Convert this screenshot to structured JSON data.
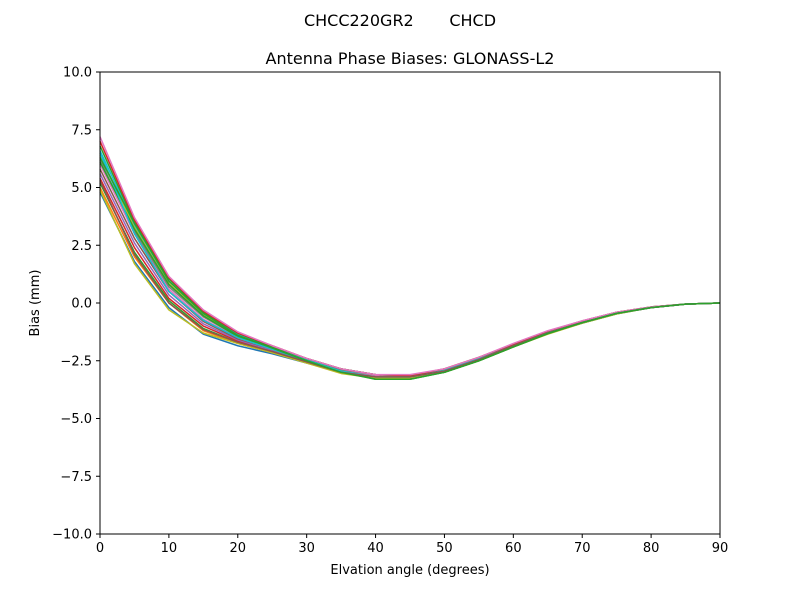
{
  "chart_data": {
    "type": "line",
    "suptitle": "CHCC220GR2       CHCD",
    "title": "Antenna Phase Biases: GLONASS-L2",
    "xlabel": "Elvation angle (degrees)",
    "ylabel": "Bias (mm)",
    "xlim": [
      0,
      90
    ],
    "ylim": [
      -10,
      10
    ],
    "xticks": [
      0,
      10,
      20,
      30,
      40,
      50,
      60,
      70,
      80,
      90
    ],
    "xtick_labels": [
      "0",
      "10",
      "20",
      "30",
      "40",
      "50",
      "60",
      "70",
      "80",
      "90"
    ],
    "yticks": [
      10,
      7.5,
      5,
      2.5,
      0,
      -2.5,
      -5,
      -7.5,
      -10
    ],
    "ytick_labels": [
      "10.0",
      "7.5",
      "5.0",
      "2.5",
      "0.0",
      "−2.5",
      "−5.0",
      "−7.5",
      "−10.0"
    ],
    "grid": false,
    "legend": "none",
    "x": [
      0,
      5,
      10,
      15,
      20,
      25,
      30,
      35,
      40,
      45,
      50,
      55,
      60,
      65,
      70,
      75,
      80,
      85,
      90
    ],
    "series": [
      {
        "color": "#1f77b4",
        "values": [
          4.8,
          1.8,
          -0.2,
          -1.35,
          -1.85,
          -2.2,
          -2.6,
          -3.0,
          -3.2,
          -3.2,
          -2.95,
          -2.45,
          -1.85,
          -1.3,
          -0.85,
          -0.45,
          -0.2,
          -0.05,
          0.0
        ]
      },
      {
        "color": "#ff7f0e",
        "values": [
          5.0,
          2.0,
          0.0,
          -1.2,
          -1.75,
          -2.15,
          -2.55,
          -3.0,
          -3.2,
          -3.2,
          -2.95,
          -2.45,
          -1.85,
          -1.3,
          -0.85,
          -0.45,
          -0.2,
          -0.05,
          0.0
        ]
      },
      {
        "color": "#2ca02c",
        "values": [
          5.2,
          2.2,
          0.1,
          -1.1,
          -1.7,
          -2.1,
          -2.55,
          -2.95,
          -3.2,
          -3.25,
          -3.0,
          -2.5,
          -1.9,
          -1.33,
          -0.87,
          -0.47,
          -0.2,
          -0.05,
          0.0
        ]
      },
      {
        "color": "#d62728",
        "values": [
          5.4,
          2.4,
          0.2,
          -1.0,
          -1.65,
          -2.1,
          -2.55,
          -2.95,
          -3.2,
          -3.2,
          -2.95,
          -2.45,
          -1.85,
          -1.3,
          -0.85,
          -0.45,
          -0.2,
          -0.05,
          0.0
        ]
      },
      {
        "color": "#9467bd",
        "values": [
          5.6,
          2.6,
          0.35,
          -0.9,
          -1.6,
          -2.05,
          -2.5,
          -2.95,
          -3.15,
          -3.2,
          -2.95,
          -2.45,
          -1.85,
          -1.3,
          -0.85,
          -0.45,
          -0.2,
          -0.05,
          0.0
        ]
      },
      {
        "color": "#8c564b",
        "values": [
          5.8,
          2.8,
          0.5,
          -0.8,
          -1.55,
          -2.0,
          -2.5,
          -2.9,
          -3.15,
          -3.2,
          -2.9,
          -2.45,
          -1.85,
          -1.3,
          -0.85,
          -0.45,
          -0.2,
          -0.05,
          0.0
        ]
      },
      {
        "color": "#e377c2",
        "values": [
          6.0,
          3.0,
          0.6,
          -0.7,
          -1.5,
          -2.0,
          -2.5,
          -2.9,
          -3.15,
          -3.2,
          -2.9,
          -2.4,
          -1.8,
          -1.27,
          -0.82,
          -0.45,
          -0.2,
          -0.05,
          0.0
        ]
      },
      {
        "color": "#7f7f7f",
        "values": [
          6.2,
          3.1,
          0.7,
          -0.6,
          -1.45,
          -1.95,
          -2.45,
          -2.9,
          -3.1,
          -3.15,
          -2.9,
          -2.4,
          -1.8,
          -1.27,
          -0.82,
          -0.43,
          -0.18,
          -0.05,
          0.0
        ]
      },
      {
        "color": "#bcbd22",
        "values": [
          6.4,
          3.3,
          0.85,
          -0.5,
          -1.4,
          -1.95,
          -2.45,
          -2.85,
          -3.1,
          -3.15,
          -2.9,
          -2.4,
          -1.8,
          -1.25,
          -0.8,
          -0.42,
          -0.18,
          -0.05,
          0.0
        ]
      },
      {
        "color": "#17becf",
        "values": [
          6.6,
          3.4,
          0.95,
          -0.45,
          -1.35,
          -1.9,
          -2.45,
          -2.85,
          -3.1,
          -3.15,
          -2.9,
          -2.4,
          -1.8,
          -1.25,
          -0.8,
          -0.42,
          -0.18,
          -0.05,
          0.0
        ]
      },
      {
        "color": "#2ca02c",
        "values": [
          6.8,
          3.5,
          1.05,
          -0.4,
          -1.3,
          -1.9,
          -2.4,
          -2.85,
          -3.1,
          -3.15,
          -2.85,
          -2.35,
          -1.78,
          -1.22,
          -0.78,
          -0.4,
          -0.17,
          -0.05,
          0.0
        ]
      },
      {
        "color": "#d62728",
        "values": [
          7.0,
          3.6,
          1.1,
          -0.35,
          -1.3,
          -1.85,
          -2.4,
          -2.85,
          -3.1,
          -3.15,
          -2.85,
          -2.35,
          -1.78,
          -1.22,
          -0.78,
          -0.4,
          -0.17,
          -0.05,
          0.0
        ]
      },
      {
        "color": "#e377c2",
        "values": [
          7.2,
          3.7,
          1.15,
          -0.3,
          -1.25,
          -1.85,
          -2.4,
          -2.85,
          -3.1,
          -3.1,
          -2.85,
          -2.35,
          -1.75,
          -1.2,
          -0.77,
          -0.4,
          -0.17,
          -0.05,
          0.0
        ]
      },
      {
        "color": "#bcbd22",
        "values": [
          4.9,
          1.7,
          -0.3,
          -1.3,
          -1.75,
          -2.15,
          -2.6,
          -3.05,
          -3.25,
          -3.25,
          -3.0,
          -2.5,
          -1.9,
          -1.35,
          -0.87,
          -0.47,
          -0.2,
          -0.05,
          0.0
        ]
      },
      {
        "color": "#2ca02c",
        "values": [
          6.1,
          3.2,
          0.8,
          -0.55,
          -1.45,
          -2.0,
          -2.5,
          -2.95,
          -3.3,
          -3.3,
          -3.0,
          -2.5,
          -1.9,
          -1.33,
          -0.85,
          -0.45,
          -0.2,
          -0.05,
          0.0
        ]
      },
      {
        "color": "#17becf",
        "values": [
          6.5,
          3.0,
          0.5,
          -0.75,
          -1.5,
          -2.0,
          -2.5,
          -2.95,
          -3.2,
          -3.2,
          -2.95,
          -2.45,
          -1.85,
          -1.3,
          -0.85,
          -0.45,
          -0.2,
          -0.05,
          0.0
        ]
      },
      {
        "color": "#8c564b",
        "values": [
          5.3,
          2.1,
          0.0,
          -1.15,
          -1.7,
          -2.1,
          -2.55,
          -3.0,
          -3.2,
          -3.2,
          -2.95,
          -2.45,
          -1.85,
          -1.3,
          -0.85,
          -0.45,
          -0.2,
          -0.05,
          0.0
        ]
      },
      {
        "color": "#2ca02c",
        "values": [
          6.3,
          3.45,
          0.95,
          -0.45,
          -1.4,
          -1.95,
          -2.5,
          -3.0,
          -3.3,
          -3.3,
          -3.0,
          -2.5,
          -1.9,
          -1.32,
          -0.85,
          -0.45,
          -0.2,
          -0.05,
          0.0
        ]
      }
    ]
  }
}
